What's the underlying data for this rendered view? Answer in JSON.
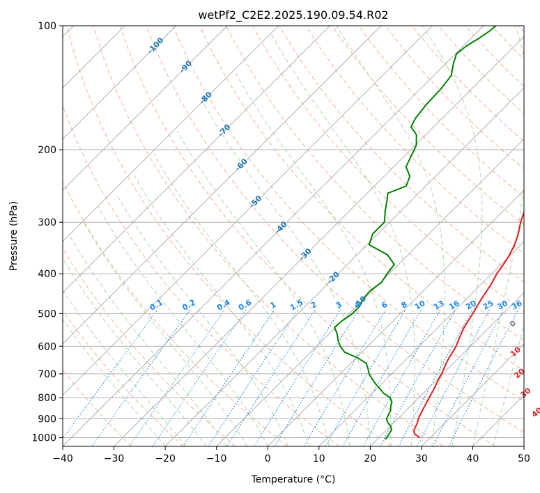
{
  "chart_data": {
    "type": "line",
    "title": "wetPf2_C2E2.2025.190.09.54.R02",
    "xlabel": "Temperature (°C)",
    "ylabel": "Pressure (hPa)",
    "xlim": [
      -40,
      50
    ],
    "ylim": [
      1050,
      100
    ],
    "yscale": "log",
    "skew_deg": 45,
    "grid": true,
    "x_ticks": [
      -40,
      -30,
      -20,
      -10,
      0,
      10,
      20,
      30,
      40,
      50
    ],
    "x_tick_labels": [
      "−40",
      "−30",
      "−20",
      "−10",
      "0",
      "10",
      "20",
      "30",
      "40",
      "50"
    ],
    "y_ticks": [
      1000,
      900,
      800,
      700,
      600,
      500,
      400,
      300,
      200,
      100
    ],
    "y_tick_labels": [
      "1000",
      "900",
      "800",
      "700",
      "600",
      "500",
      "400",
      "300",
      "200",
      "100"
    ],
    "colors": {
      "temperature": "#e41a1c",
      "dewpoint": "#008000",
      "isotherm_label": "#1f77b4",
      "mixing_ratio": "#1e88e5",
      "dry_adiabat": "#f4a582",
      "moist_adiabat": "#a6d9a0",
      "grid": "#b0b0b0",
      "lcl_label": "#808080",
      "moist_label": "#d62728"
    },
    "isotherm_labels": [
      {
        "text": "-100",
        "t": -100,
        "p": 112
      },
      {
        "text": "-90",
        "t": -90,
        "p": 126
      },
      {
        "text": "-80",
        "t": -80,
        "p": 150
      },
      {
        "text": "-70",
        "t": -70,
        "p": 180
      },
      {
        "text": "-60",
        "t": -60,
        "p": 218
      },
      {
        "text": "-50",
        "t": -50,
        "p": 268
      },
      {
        "text": "-40",
        "t": -40,
        "p": 310
      },
      {
        "text": "-30",
        "t": -30,
        "p": 360
      },
      {
        "text": "-20",
        "t": -20,
        "p": 410
      },
      {
        "text": "-10",
        "t": -10,
        "p": 470
      }
    ],
    "mixing_ratio_labels": [
      {
        "text": "0.1",
        "w": 0.1
      },
      {
        "text": "0.2",
        "w": 0.2
      },
      {
        "text": "0.4",
        "w": 0.4
      },
      {
        "text": "0.6",
        "w": 0.6
      },
      {
        "text": "1",
        "w": 1
      },
      {
        "text": "1.5",
        "w": 1.5
      },
      {
        "text": "2",
        "w": 2
      },
      {
        "text": "3",
        "w": 3
      },
      {
        "text": "4",
        "w": 4
      },
      {
        "text": "6",
        "w": 6
      },
      {
        "text": "8",
        "w": 8
      },
      {
        "text": "10",
        "w": 10
      },
      {
        "text": "13",
        "w": 13
      },
      {
        "text": "16",
        "w": 16
      },
      {
        "text": "20",
        "w": 20
      },
      {
        "text": "25",
        "w": 25
      },
      {
        "text": "30",
        "w": 30
      },
      {
        "text": "36",
        "w": 36
      }
    ],
    "mixing_ratio_label_p": 490,
    "moist_adiabat_labels": [
      {
        "text": "0",
        "t": 24,
        "p": 530,
        "kind": "lcl"
      },
      {
        "text": "10",
        "t": 30,
        "p": 620,
        "kind": "moist"
      },
      {
        "text": "20",
        "t": 35,
        "p": 700,
        "kind": "moist"
      },
      {
        "text": "30",
        "t": 40,
        "p": 780,
        "kind": "moist"
      },
      {
        "text": "40",
        "t": 46,
        "p": 870,
        "kind": "moist"
      }
    ],
    "series": [
      {
        "name": "Temperature",
        "key": "temperature",
        "points": [
          [
            28.0,
            1000
          ],
          [
            26.2,
            980
          ],
          [
            25.4,
            960
          ],
          [
            25.0,
            940
          ],
          [
            24.6,
            920
          ],
          [
            24.0,
            900
          ],
          [
            23.6,
            880
          ],
          [
            23.2,
            860
          ],
          [
            22.8,
            840
          ],
          [
            22.4,
            820
          ],
          [
            22.0,
            800
          ],
          [
            21.6,
            780
          ],
          [
            21.2,
            760
          ],
          [
            20.7,
            740
          ],
          [
            20.2,
            720
          ],
          [
            19.8,
            700
          ],
          [
            19.2,
            680
          ],
          [
            18.6,
            660
          ],
          [
            18.1,
            640
          ],
          [
            17.7,
            620
          ],
          [
            17.2,
            600
          ],
          [
            16.5,
            580
          ],
          [
            15.8,
            560
          ],
          [
            15.1,
            540
          ],
          [
            14.6,
            520
          ],
          [
            14.1,
            500
          ],
          [
            13.5,
            480
          ],
          [
            12.9,
            460
          ],
          [
            12.4,
            440
          ],
          [
            11.8,
            420
          ],
          [
            11.0,
            400
          ],
          [
            10.5,
            380
          ],
          [
            9.8,
            360
          ],
          [
            8.8,
            340
          ],
          [
            7.4,
            320
          ],
          [
            5.6,
            300
          ],
          [
            4.0,
            280
          ],
          [
            2.4,
            260
          ],
          [
            0.6,
            240
          ],
          [
            -1.0,
            220
          ],
          [
            -2.6,
            200
          ],
          [
            -3.8,
            185
          ],
          [
            -4.2,
            172
          ],
          [
            -4.8,
            160
          ],
          [
            -5.6,
            150
          ],
          [
            -6.4,
            140
          ],
          [
            -7.0,
            130
          ],
          [
            -7.8,
            120
          ],
          [
            -8.6,
            112
          ],
          [
            -9.2,
            106
          ],
          [
            -10.0,
            100
          ]
        ]
      },
      {
        "name": "Dewpoint",
        "key": "dewpoint",
        "points": [
          [
            21.6,
            1010
          ],
          [
            21.4,
            990
          ],
          [
            21.0,
            960
          ],
          [
            20.2,
            940
          ],
          [
            18.8,
            920
          ],
          [
            17.8,
            900
          ],
          [
            17.4,
            880
          ],
          [
            17.0,
            860
          ],
          [
            16.2,
            840
          ],
          [
            15.6,
            820
          ],
          [
            14.4,
            800
          ],
          [
            12.2,
            780
          ],
          [
            10.6,
            760
          ],
          [
            8.8,
            740
          ],
          [
            7.2,
            720
          ],
          [
            5.6,
            700
          ],
          [
            4.4,
            680
          ],
          [
            3.0,
            660
          ],
          [
            0.2,
            640
          ],
          [
            -3.4,
            620
          ],
          [
            -5.4,
            600
          ],
          [
            -7.0,
            580
          ],
          [
            -8.4,
            560
          ],
          [
            -10.2,
            540
          ],
          [
            -10.0,
            520
          ],
          [
            -9.4,
            500
          ],
          [
            -9.4,
            480
          ],
          [
            -10.2,
            460
          ],
          [
            -10.4,
            440
          ],
          [
            -9.8,
            420
          ],
          [
            -10.4,
            400
          ],
          [
            -10.8,
            380
          ],
          [
            -14.0,
            360
          ],
          [
            -19.6,
            340
          ],
          [
            -21.0,
            320
          ],
          [
            -21.0,
            300
          ],
          [
            -23.2,
            280
          ],
          [
            -24.8,
            265
          ],
          [
            -26.0,
            255
          ],
          [
            -23.8,
            245
          ],
          [
            -25.0,
            232
          ],
          [
            -27.6,
            220
          ],
          [
            -28.6,
            208
          ],
          [
            -29.8,
            195
          ],
          [
            -31.8,
            184
          ],
          [
            -34.4,
            176
          ],
          [
            -35.2,
            168
          ],
          [
            -35.8,
            155
          ],
          [
            -36.0,
            142
          ],
          [
            -36.6,
            132
          ],
          [
            -38.4,
            124
          ],
          [
            -39.8,
            117
          ],
          [
            -39.4,
            112
          ],
          [
            -38.4,
            107
          ],
          [
            -37.8,
            103
          ],
          [
            -37.6,
            100
          ]
        ]
      }
    ]
  }
}
